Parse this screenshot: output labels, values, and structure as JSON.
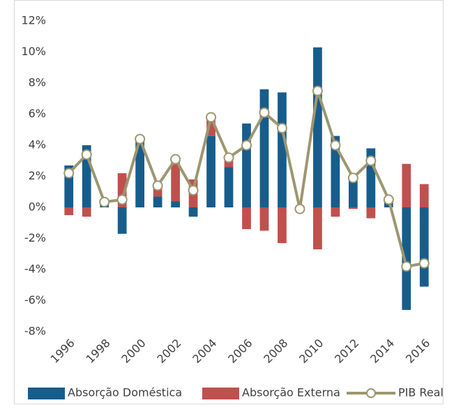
{
  "chart_data": {
    "type": "bar-line",
    "categories": [
      "1996",
      null,
      "1998",
      null,
      "2000",
      null,
      "2002",
      null,
      "2004",
      null,
      "2006",
      null,
      "2008",
      null,
      "2010",
      null,
      "2012",
      null,
      "2014",
      null,
      "2016"
    ],
    "series": [
      {
        "name": "Absorção Doméstica",
        "type": "bar",
        "color": "#175d8c",
        "values": [
          2.7,
          4.0,
          0.2,
          -1.7,
          4.3,
          0.7,
          0.4,
          -0.6,
          4.6,
          2.6,
          5.4,
          7.6,
          7.4,
          -0.1,
          10.3,
          4.6,
          2.0,
          3.8,
          0.4,
          -6.6,
          -5.1
        ]
      },
      {
        "name": "Absorção Externa",
        "type": "bar",
        "color": "#c0504d",
        "values": [
          -0.5,
          -0.6,
          0.1,
          2.2,
          0.1,
          0.7,
          2.5,
          1.8,
          1.1,
          0.6,
          -1.4,
          -1.5,
          -2.3,
          0.0,
          -2.7,
          -0.6,
          -0.1,
          -0.7,
          0.1,
          2.8,
          1.5
        ]
      },
      {
        "name": "PIB Real",
        "type": "line",
        "color": "#9d9670",
        "values": [
          2.2,
          3.4,
          0.35,
          0.5,
          4.4,
          1.4,
          3.1,
          1.1,
          5.8,
          3.2,
          4.0,
          6.1,
          5.1,
          -0.1,
          7.5,
          4.0,
          1.9,
          3.0,
          0.5,
          -3.8,
          -3.6
        ]
      }
    ],
    "ylim": [
      -8,
      12
    ],
    "yticks": [
      {
        "value": -8,
        "label": "-8%"
      },
      {
        "value": -6,
        "label": "-6%"
      },
      {
        "value": -4,
        "label": "-4%"
      },
      {
        "value": -2,
        "label": "-2%"
      },
      {
        "value": 0,
        "label": "0%"
      },
      {
        "value": 2,
        "label": "2%"
      },
      {
        "value": 4,
        "label": "4%"
      },
      {
        "value": 6,
        "label": "6%"
      },
      {
        "value": 8,
        "label": "8%"
      },
      {
        "value": 10,
        "label": "10%"
      },
      {
        "value": 12,
        "label": "12%"
      }
    ],
    "grid": false,
    "legend": "bottom"
  }
}
